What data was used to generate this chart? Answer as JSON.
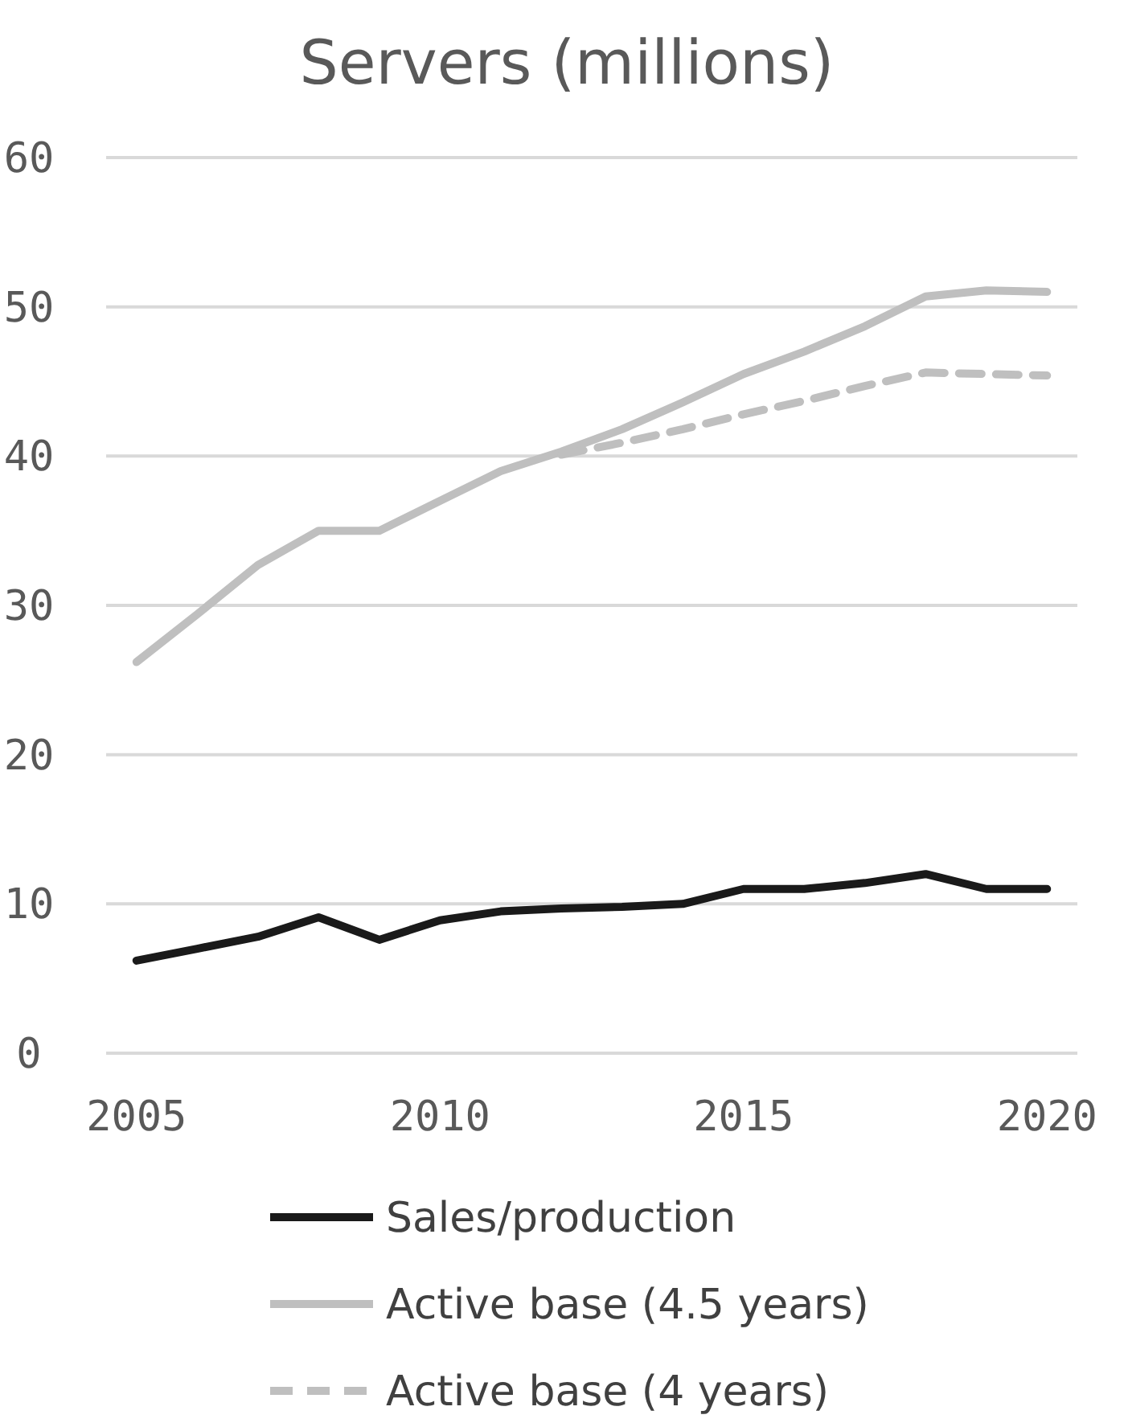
{
  "chart_data": {
    "type": "line",
    "title": "Servers (millions)",
    "x": [
      2005,
      2006,
      2007,
      2008,
      2009,
      2010,
      2011,
      2012,
      2013,
      2014,
      2015,
      2016,
      2017,
      2018,
      2019,
      2020
    ],
    "series": [
      {
        "name": "Sales/production",
        "color": "#1a1a1a",
        "values": [
          6.2,
          7.0,
          7.8,
          9.1,
          7.6,
          8.9,
          9.5,
          9.7,
          9.8,
          10.0,
          11.0,
          11.0,
          11.4,
          12.0,
          11.0,
          11.0
        ]
      },
      {
        "name": "Active base (4.5 years)",
        "color": "#bfbfbf",
        "values": [
          26.2,
          29.4,
          32.7,
          35.0,
          35.0,
          37.0,
          39.0,
          40.3,
          41.8,
          43.6,
          45.5,
          47.0,
          48.7,
          50.7,
          51.1,
          51.0
        ]
      },
      {
        "name": "Active base (4 years)",
        "color": "#bfbfbf",
        "line_style": "dashed",
        "values": [
          null,
          null,
          null,
          null,
          null,
          null,
          null,
          40.1,
          40.9,
          41.8,
          42.8,
          43.7,
          44.7,
          45.6,
          45.5,
          45.4
        ]
      }
    ],
    "xlim": [
      2004.5,
      2020.5
    ],
    "xticks": [
      2005,
      2010,
      2015,
      2020
    ],
    "ylim": [
      0,
      60
    ],
    "yticks": [
      0,
      10,
      20,
      30,
      40,
      50,
      60
    ],
    "grid": "y",
    "legend": "bottom",
    "marker": "none"
  }
}
